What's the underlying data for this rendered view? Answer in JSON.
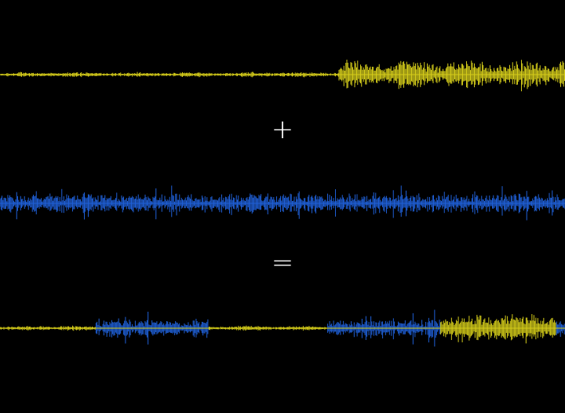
{
  "operators": {
    "plus": "+",
    "equals": "="
  },
  "colors": {
    "background": "#000000",
    "signal_a": "#d4cc1a",
    "signal_b": "#1f5fd6",
    "operator": "#ffffff"
  },
  "waveforms": [
    {
      "name": "signal-a",
      "color": "#d4cc1a",
      "segments": [
        {
          "from": 0.0,
          "to": 0.6,
          "amplitude": 0.15,
          "style": "tonal"
        },
        {
          "from": 0.6,
          "to": 1.0,
          "amplitude": 0.9,
          "style": "tonal"
        }
      ]
    },
    {
      "name": "signal-b",
      "color": "#1f5fd6",
      "segments": [
        {
          "from": 0.0,
          "to": 1.0,
          "amplitude": 1.0,
          "style": "noise"
        }
      ]
    },
    {
      "name": "signal-sum",
      "color_a": "#d4cc1a",
      "color_b": "#1f5fd6",
      "segments": [
        {
          "from": 0.0,
          "to": 0.17,
          "source": "a",
          "amplitude": 0.15
        },
        {
          "from": 0.17,
          "to": 0.37,
          "source": "b",
          "amplitude": 1.0
        },
        {
          "from": 0.37,
          "to": 0.58,
          "source": "a",
          "amplitude": 0.15
        },
        {
          "from": 0.58,
          "to": 0.78,
          "source": "b",
          "amplitude": 1.0
        },
        {
          "from": 0.78,
          "to": 0.985,
          "source": "a",
          "amplitude": 0.9
        },
        {
          "from": 0.985,
          "to": 1.0,
          "source": "b",
          "amplitude": 1.0
        }
      ]
    }
  ]
}
